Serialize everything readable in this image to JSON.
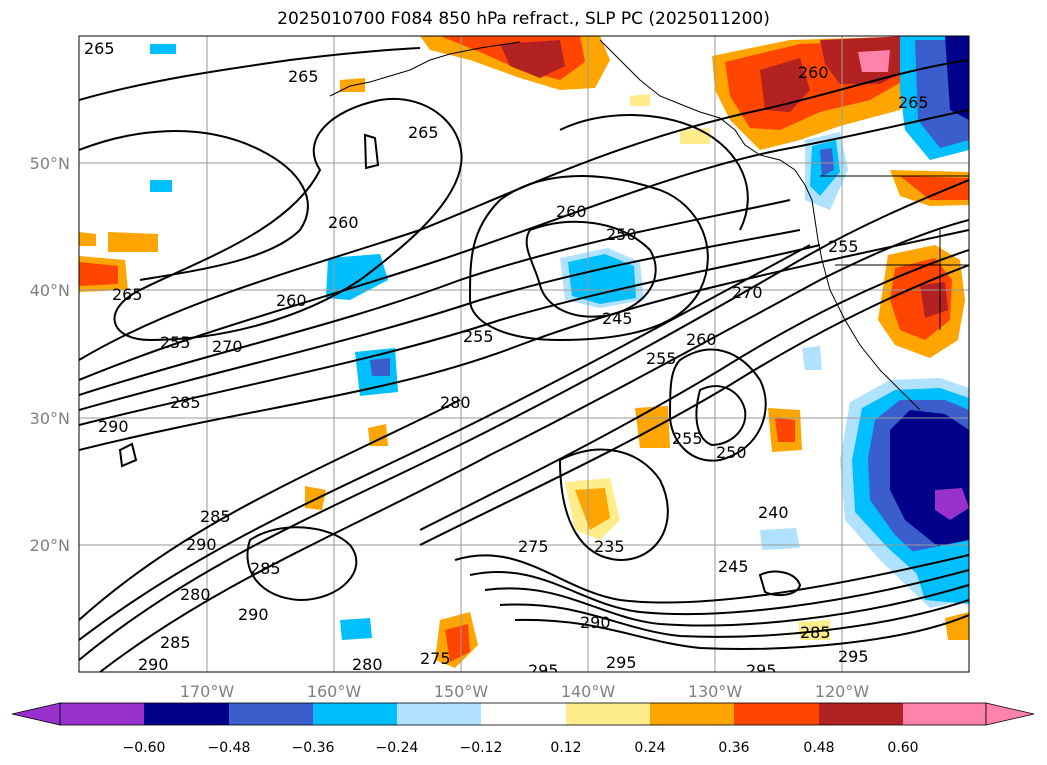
{
  "title": "2025010700 F084 850 hPa refract., SLP PC (2025011200)",
  "map": {
    "lon_ticks": [
      "170°W",
      "160°W",
      "150°W",
      "140°W",
      "130°W",
      "120°W"
    ],
    "lat_ticks": [
      "50°N",
      "40°N",
      "30°N",
      "20°N"
    ],
    "contour_labels": [
      "265",
      "265",
      "265",
      "260",
      "265",
      "260",
      "265",
      "255",
      "270",
      "285",
      "290",
      "260",
      "250",
      "255",
      "245",
      "270",
      "260",
      "255",
      "280",
      "255",
      "250",
      "240",
      "285",
      "290",
      "295",
      "285",
      "290",
      "280",
      "275",
      "235",
      "245",
      "290",
      "285",
      "290",
      "280",
      "275",
      "295",
      "295",
      "295",
      "285",
      "295",
      "265",
      "260",
      "255"
    ]
  },
  "colorbar": {
    "ticks": [
      "−0.60",
      "−0.48",
      "−0.36",
      "−0.24",
      "−0.12",
      "0.12",
      "0.24",
      "0.36",
      "0.48",
      "0.60"
    ],
    "colors": [
      "#9932cc",
      "#00008b",
      "#3a5fcd",
      "#00bfff",
      "#b0e2ff",
      "#ffffff",
      "#ffec8b",
      "#ffa500",
      "#ff4500",
      "#b22222",
      "#ff82ab"
    ]
  }
}
